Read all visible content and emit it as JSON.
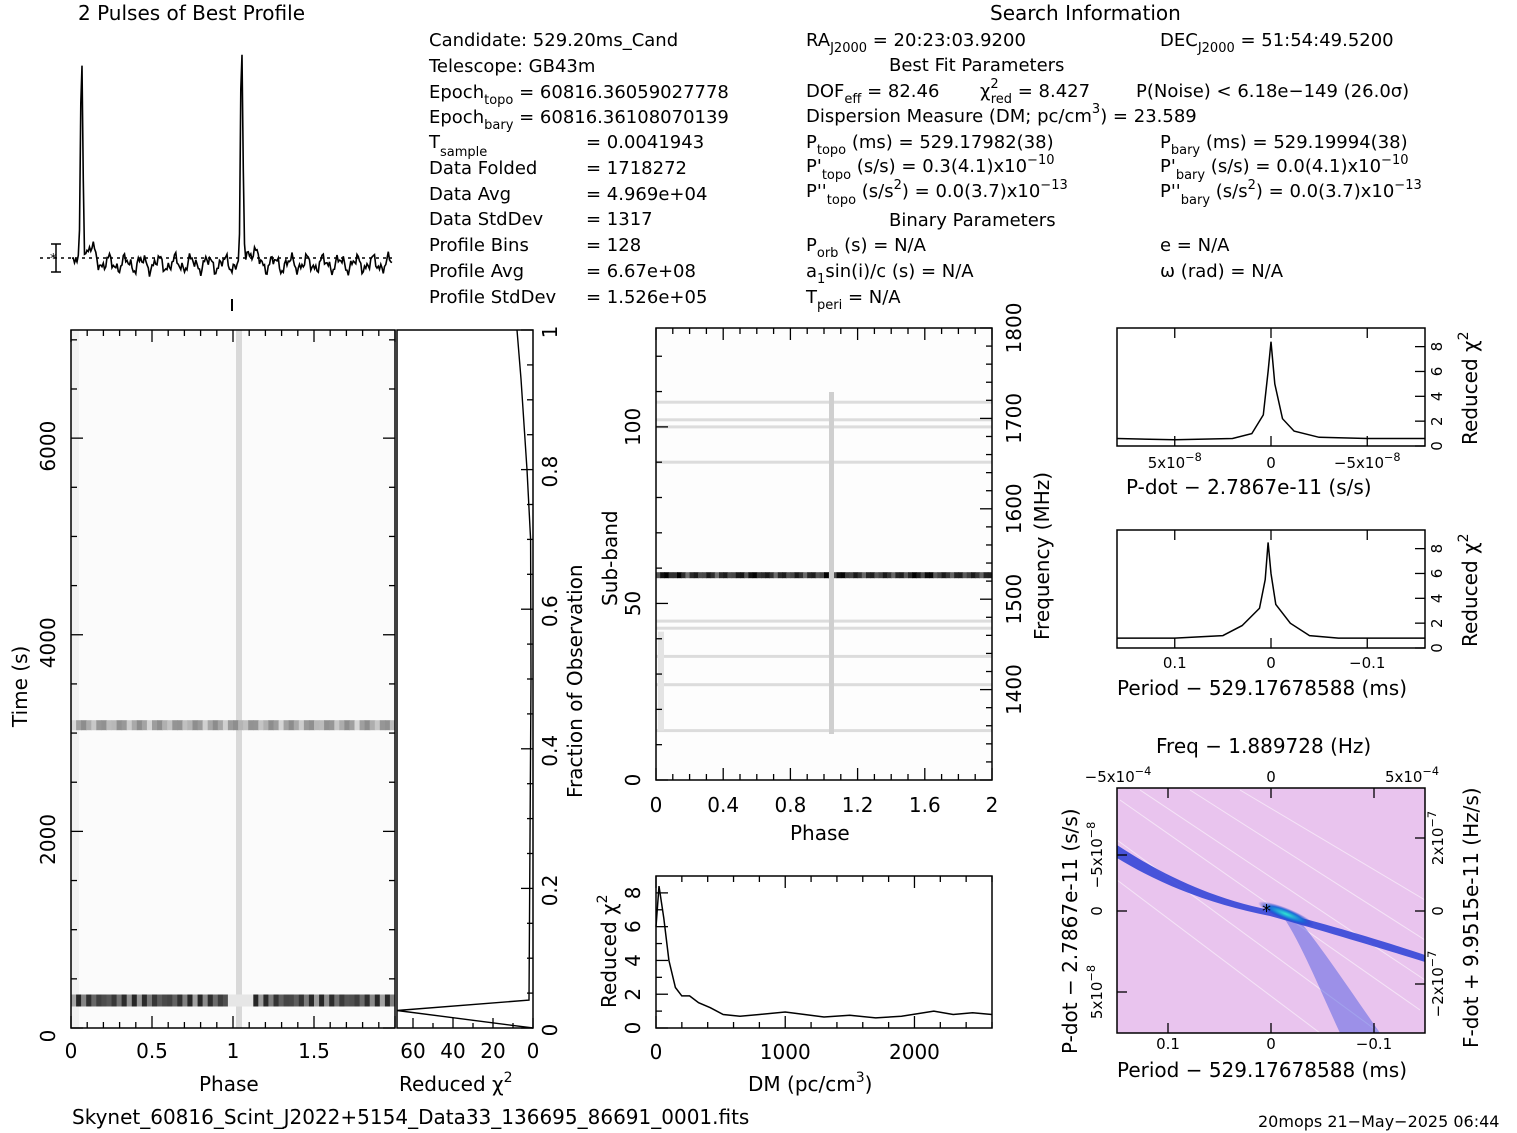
{
  "header": {
    "profile_title": "2 Pulses of Best Profile",
    "search_title": "Search Information",
    "best_fit_title": "Best Fit Parameters",
    "binary_title": "Binary Parameters"
  },
  "info": {
    "candidate": "Candidate:  529.20ms_Cand",
    "telescope": "Telescope:  GB43m",
    "epoch_topo_base": "Epoch",
    "epoch_topo_sub": "topo",
    "epoch_topo_val": " = 60816.36059027778",
    "epoch_bary_base": "Epoch",
    "epoch_bary_sub": "bary",
    "epoch_bary_val": " = 60816.36108070139",
    "tsample_base": "T",
    "tsample_sub": "sample",
    "tsample_val": "=  0.0041943",
    "data_folded_label": "Data Folded",
    "data_folded_val": "=  1718272",
    "data_avg_label": "Data Avg",
    "data_avg_val": "=  4.969e+04",
    "data_std_label": "Data StdDev",
    "data_std_val": "=  1317",
    "prof_bins_label": "Profile Bins",
    "prof_bins_val": "=  128",
    "prof_avg_label": "Profile Avg",
    "prof_avg_val": "=  6.67e+08",
    "prof_std_label": "Profile StdDev",
    "prof_std_val": "=  1.526e+05"
  },
  "search": {
    "ra_base": "RA",
    "ra_sub": "J2000",
    "ra_val": " = 20:23:03.9200",
    "dec_base": "DEC",
    "dec_sub": "J2000",
    "dec_val": " = 51:54:49.5200",
    "dof_base": "DOF",
    "dof_sub": "eff",
    "dof_val": " = 82.46",
    "chi_base": "χ",
    "chi_sup": "2",
    "chi_sub": "red",
    "chi_val": " = 8.427",
    "pnoise": "P(Noise) < 6.18e−149  (26.0σ)",
    "dm_line_a": "Dispersion Measure (DM; pc/cm",
    "dm_line_sup": "3",
    "dm_line_b": ") = 23.589",
    "ptopo_base": "P",
    "ptopo_sub": "topo",
    "ptopo_val": " (ms) =  529.17982(38)",
    "pbary_base": "P",
    "pbary_sub": "bary",
    "pbary_val": " (ms) =  529.19994(38)",
    "pdtopo_base": "P'",
    "pdtopo_sub": "topo",
    "pdtopo_val": " (s/s) =  0.3(4.1)x10",
    "pdtopo_exp": "−10",
    "pdbary_base": "P'",
    "pdbary_sub": "bary",
    "pdbary_val": " (s/s) = 0.0(4.1)x10",
    "pdbary_exp": "−10",
    "pddtopo_base": "P''",
    "pddtopo_sub": "topo",
    "pddtopo_val_a": " (s/s",
    "pddtopo_val_sup": "2",
    "pddtopo_val_b": ") = 0.0(3.7)x10",
    "pddtopo_exp": "−13",
    "pddbary_base": "P''",
    "pddbary_sub": "bary",
    "pddbary_val_a": " (s/s",
    "pddbary_val_sup": "2",
    "pddbary_val_b": ") = 0.0(3.7)x10",
    "pddbary_exp": "−13",
    "porb_base": "P",
    "porb_sub": "orb",
    "porb_val": " (s) = N/A",
    "ecc": "e = N/A",
    "a1_base": "a",
    "a1_sub": "1",
    "a1_val": "sin(i)/c (s) = N/A",
    "omega": "ω (rad) = N/A",
    "tperi_base": "T",
    "tperi_sub": "peri",
    "tperi_val": " = N/A"
  },
  "footer": {
    "filename": "Skynet_60816_Scint_J2022+5154_Data33_136695_86691_0001.fits",
    "stamp": "20mops 21−May−2025 06:44"
  },
  "colors": {
    "ink": "#000000",
    "pp_bg": "#e9c4ee",
    "pp_band": "#1a2cc8",
    "pp_peak": "#2ee6d2"
  },
  "chart_data": [
    {
      "type": "line",
      "name": "profile",
      "title": "2 Pulses of Best Profile",
      "x_range": [
        0,
        2
      ],
      "peaks_phase": [
        0.06,
        1.06
      ]
    },
    {
      "type": "heatmap",
      "name": "time-phase",
      "xlabel": "Phase",
      "ylabel": "Time (s)",
      "xlim": [
        0,
        2
      ],
      "ylim": [
        0,
        7100
      ],
      "x_ticks": [
        "0",
        "0.5",
        "1",
        "1.5"
      ],
      "y_ticks": [
        "0",
        "2000",
        "4000",
        "6000"
      ],
      "bright_rows_time": [
        280,
        3080
      ]
    },
    {
      "type": "line",
      "name": "chi-vs-fraction",
      "xlabel": "Reduced χ",
      "xlabel_sup": "2",
      "ylabel": "Fraction of Observation",
      "xlim": [
        68,
        0
      ],
      "ylim": [
        0,
        1
      ],
      "x_ticks": [
        "60",
        "40",
        "20",
        "0"
      ],
      "y_ticks": [
        "0",
        "0.2",
        "0.4",
        "0.6",
        "0.8",
        "1"
      ],
      "points": [
        [
          0,
          0
        ],
        [
          68,
          0.025
        ],
        [
          2,
          0.04
        ],
        [
          1,
          0.5
        ],
        [
          1.2,
          0.7
        ],
        [
          3,
          0.8
        ],
        [
          6,
          0.93
        ],
        [
          8,
          1.0
        ]
      ]
    },
    {
      "type": "heatmap",
      "name": "subband-phase",
      "xlabel": "Phase",
      "ylabel": "Sub-band",
      "y2label": "Frequency (MHz)",
      "xlim": [
        0,
        2
      ],
      "ylim": [
        0,
        128
      ],
      "x_ticks": [
        "0",
        "0.4",
        "0.8",
        "1.2",
        "1.6",
        "2"
      ],
      "y_ticks": [
        "0",
        "50",
        "100"
      ],
      "y2_ticks": [
        "1400",
        "1500",
        "1600",
        "1700",
        "1800"
      ],
      "y2lim": [
        1300,
        1800
      ],
      "strong_subband": 58,
      "faint_subbands": [
        14,
        27,
        35,
        43,
        45,
        90,
        100,
        102,
        107
      ]
    },
    {
      "type": "line",
      "name": "dm-chi",
      "xlabel": "DM (pc/cm",
      "xlabel_sup": "3",
      "xlabel_end": ")",
      "ylabel": "Reduced χ",
      "ylabel_sup": "2",
      "xlim": [
        0,
        2600
      ],
      "ylim": [
        0,
        9
      ],
      "x_ticks": [
        "0",
        "1000",
        "2000"
      ],
      "y_ticks": [
        "0",
        "2",
        "4",
        "6",
        "8"
      ],
      "points": [
        [
          0,
          6
        ],
        [
          23,
          8.4
        ],
        [
          60,
          6.5
        ],
        [
          100,
          4
        ],
        [
          150,
          2.4
        ],
        [
          200,
          1.9
        ],
        [
          260,
          1.9
        ],
        [
          330,
          1.5
        ],
        [
          420,
          1.2
        ],
        [
          520,
          0.8
        ],
        [
          650,
          0.7
        ],
        [
          800,
          0.8
        ],
        [
          1000,
          0.95
        ],
        [
          1150,
          0.8
        ],
        [
          1300,
          0.65
        ],
        [
          1500,
          0.75
        ],
        [
          1700,
          0.6
        ],
        [
          1900,
          0.7
        ],
        [
          2150,
          1.0
        ],
        [
          2300,
          0.8
        ],
        [
          2450,
          0.9
        ],
        [
          2600,
          0.8
        ]
      ]
    },
    {
      "type": "line",
      "name": "pdot-chi",
      "xlabel": "P-dot − 2.7867e-11 (s/s)",
      "ylabel": "Reduced χ",
      "ylabel_sup": "2",
      "xlim": [
        8e-08,
        -8e-08
      ],
      "ylim": [
        0,
        9.5
      ],
      "x_ticks": [
        "5x10",
        "0",
        "−5x10"
      ],
      "x_tick_exp": "−8",
      "y_ticks": [
        "0",
        "2",
        "4",
        "6",
        "8"
      ],
      "points": [
        [
          8e-08,
          0.6
        ],
        [
          5e-08,
          0.5
        ],
        [
          2e-08,
          0.6
        ],
        [
          1e-08,
          1.0
        ],
        [
          4e-09,
          2.5
        ],
        [
          1.5e-09,
          6
        ],
        [
          0,
          8.4
        ],
        [
          -2e-09,
          5
        ],
        [
          -6e-09,
          2.2
        ],
        [
          -1.2e-08,
          1.2
        ],
        [
          -2.5e-08,
          0.7
        ],
        [
          -5e-08,
          0.6
        ],
        [
          -8e-08,
          0.6
        ]
      ]
    },
    {
      "type": "line",
      "name": "period-chi",
      "xlabel": "Period − 529.17678588 (ms)",
      "ylabel": "Reduced χ",
      "ylabel_sup": "2",
      "xlim": [
        0.16,
        -0.16
      ],
      "ylim": [
        0,
        9.5
      ],
      "x_ticks": [
        "0.1",
        "0",
        "−0.1"
      ],
      "y_ticks": [
        "0",
        "2",
        "4",
        "6",
        "8"
      ],
      "points": [
        [
          0.16,
          0.8
        ],
        [
          0.1,
          0.8
        ],
        [
          0.05,
          1.0
        ],
        [
          0.03,
          1.8
        ],
        [
          0.012,
          3.2
        ],
        [
          0.006,
          5.5
        ],
        [
          0.003,
          8.5
        ],
        [
          0,
          6
        ],
        [
          -0.005,
          3.5
        ],
        [
          -0.02,
          2
        ],
        [
          -0.04,
          1.0
        ],
        [
          -0.07,
          0.8
        ],
        [
          -0.16,
          0.8
        ]
      ]
    },
    {
      "type": "heatmap",
      "name": "p-pdot",
      "title": "Freq − 1.889728 (Hz)",
      "xlabel": "Period − 529.17678588 (ms)",
      "ylabel": "P-dot − 2.7867e-11 (s/s)",
      "y2label": "F-dot + 9.9515e-11 (Hz/s)",
      "x_ticks": [
        "0.1",
        "0",
        "−0.1"
      ],
      "x2_ticks": [
        "−5x10",
        "0",
        "5x10"
      ],
      "x2_tick_exp": "−4",
      "y_ticks": [
        "−5x10",
        "0",
        "5x10"
      ],
      "y_tick_exp": "−8",
      "y2_ticks": [
        "2x10",
        "0",
        "−2x10"
      ],
      "y2_tick_exp": "−7"
    }
  ]
}
